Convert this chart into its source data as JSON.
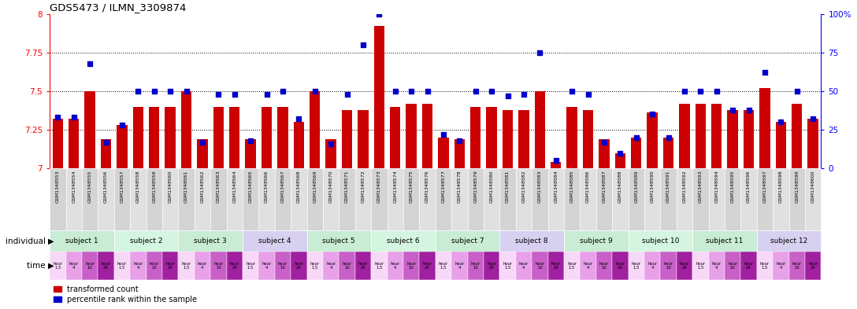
{
  "title": "GDS5473 / ILMN_3309874",
  "samples": [
    "GSM1348553",
    "GSM1348554",
    "GSM1348555",
    "GSM1348556",
    "GSM1348557",
    "GSM1348558",
    "GSM1348559",
    "GSM1348560",
    "GSM1348561",
    "GSM1348562",
    "GSM1348563",
    "GSM1348564",
    "GSM1348565",
    "GSM1348566",
    "GSM1348567",
    "GSM1348568",
    "GSM1348569",
    "GSM1348570",
    "GSM1348571",
    "GSM1348572",
    "GSM1348573",
    "GSM1348574",
    "GSM1348575",
    "GSM1348576",
    "GSM1348577",
    "GSM1348578",
    "GSM1348579",
    "GSM1348580",
    "GSM1348581",
    "GSM1348582",
    "GSM1348583",
    "GSM1348584",
    "GSM1348585",
    "GSM1348586",
    "GSM1348587",
    "GSM1348588",
    "GSM1348589",
    "GSM1348590",
    "GSM1348591",
    "GSM1348592",
    "GSM1348593",
    "GSM1348594",
    "GSM1348595",
    "GSM1348596",
    "GSM1348597",
    "GSM1348598",
    "GSM1348599",
    "GSM1348600"
  ],
  "red_values": [
    7.32,
    7.32,
    7.5,
    7.19,
    7.28,
    7.4,
    7.4,
    7.4,
    7.5,
    7.19,
    7.4,
    7.4,
    7.19,
    7.4,
    7.4,
    7.3,
    7.5,
    7.19,
    7.38,
    7.38,
    7.92,
    7.4,
    7.42,
    7.42,
    7.2,
    7.19,
    7.4,
    7.4,
    7.38,
    7.38,
    7.5,
    7.04,
    7.4,
    7.38,
    7.19,
    7.1,
    7.2,
    7.36,
    7.2,
    7.42,
    7.42,
    7.42,
    7.38,
    7.38,
    7.52,
    7.3,
    7.42,
    7.32
  ],
  "blue_values_pct": [
    33,
    33,
    68,
    17,
    28,
    50,
    50,
    50,
    50,
    17,
    48,
    48,
    18,
    48,
    50,
    32,
    50,
    16,
    48,
    80,
    100,
    50,
    50,
    50,
    22,
    18,
    50,
    50,
    47,
    48,
    75,
    5,
    50,
    48,
    17,
    10,
    20,
    35,
    20,
    50,
    50,
    50,
    38,
    38,
    62,
    30,
    50,
    32
  ],
  "subjects": [
    {
      "label": "subject 1",
      "start": 0,
      "end": 4,
      "color": "#c8ecd4"
    },
    {
      "label": "subject 2",
      "start": 4,
      "end": 8,
      "color": "#d4f5e0"
    },
    {
      "label": "subject 3",
      "start": 8,
      "end": 12,
      "color": "#c8ecd4"
    },
    {
      "label": "subject 4",
      "start": 12,
      "end": 16,
      "color": "#d8d0f0"
    },
    {
      "label": "subject 5",
      "start": 16,
      "end": 20,
      "color": "#c8ecd4"
    },
    {
      "label": "subject 6",
      "start": 20,
      "end": 24,
      "color": "#d4f5e0"
    },
    {
      "label": "subject 7",
      "start": 24,
      "end": 28,
      "color": "#c8ecd4"
    },
    {
      "label": "subject 8",
      "start": 28,
      "end": 32,
      "color": "#d8d0f0"
    },
    {
      "label": "subject 9",
      "start": 32,
      "end": 36,
      "color": "#c8ecd4"
    },
    {
      "label": "subject 10",
      "start": 36,
      "end": 40,
      "color": "#d4f5e0"
    },
    {
      "label": "subject 11",
      "start": 40,
      "end": 44,
      "color": "#c8ecd4"
    },
    {
      "label": "subject 12",
      "start": 44,
      "end": 48,
      "color": "#d8d0f0"
    }
  ],
  "time_labels": [
    "hour\n1.5",
    "hour\n4",
    "hour\n10",
    "hour\n24"
  ],
  "time_colors": [
    "#f8d8f8",
    "#e8a0e8",
    "#c860c8",
    "#a020a0"
  ],
  "ylim": [
    7.0,
    8.0
  ],
  "yticks_left": [
    7.0,
    7.25,
    7.5,
    7.75,
    8.0
  ],
  "yticks_right": [
    0,
    25,
    50,
    75,
    100
  ],
  "ytick_right_labels": [
    "0",
    "25",
    "50",
    "75",
    "100%"
  ],
  "hlines": [
    7.25,
    7.5,
    7.75
  ],
  "bar_color": "#cc0000",
  "dot_color": "#0000cc",
  "bar_width": 0.65,
  "legend_red": "transformed count",
  "legend_blue": "percentile rank within the sample",
  "sample_colors": [
    "#d4d4d4",
    "#e0e0e0"
  ]
}
